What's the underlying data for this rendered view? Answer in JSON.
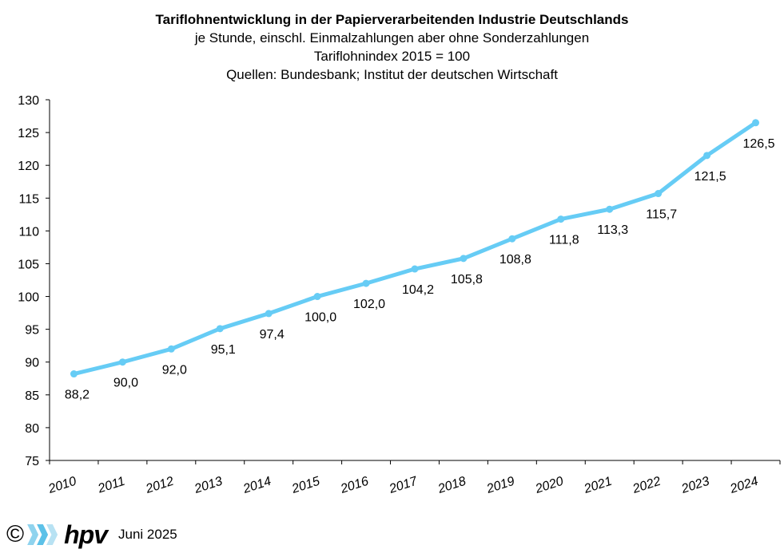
{
  "chart_data": {
    "type": "line",
    "title": "Tariflohnentwicklung in der Papierverarbeitenden Industrie Deutschlands",
    "subtitles": [
      "je Stunde, einschl. Einmalzahlungen  aber ohne Sonderzahlungen",
      "Tariflohnindex 2015 = 100",
      "Quellen: Bundesbank; Institut der deutschen Wirtschaft"
    ],
    "categories": [
      "2010",
      "2011",
      "2012",
      "2013",
      "2014",
      "2015",
      "2016",
      "2017",
      "2018",
      "2019",
      "2020",
      "2021",
      "2022",
      "2023",
      "2024"
    ],
    "values": [
      88.2,
      90.0,
      92.0,
      95.1,
      97.4,
      100.0,
      102.0,
      104.2,
      105.8,
      108.8,
      111.8,
      113.3,
      115.7,
      121.5,
      126.5
    ],
    "data_labels": [
      "88,2",
      "90,0",
      "92,0",
      "95,1",
      "97,4",
      "100,0",
      "102,0",
      "104,2",
      "105,8",
      "108,8",
      "111,8",
      "113,3",
      "115,7",
      "121,5",
      "126,5"
    ],
    "y_ticks": [
      75,
      80,
      85,
      90,
      95,
      100,
      105,
      110,
      115,
      120,
      125,
      130
    ],
    "ylim": [
      75,
      130
    ],
    "xlabel": "",
    "ylabel": "",
    "grid": false,
    "line_color": "#66ccf5"
  },
  "footer": {
    "copyright": "©",
    "logo_text": "hpv",
    "date": "Juni 2025"
  }
}
